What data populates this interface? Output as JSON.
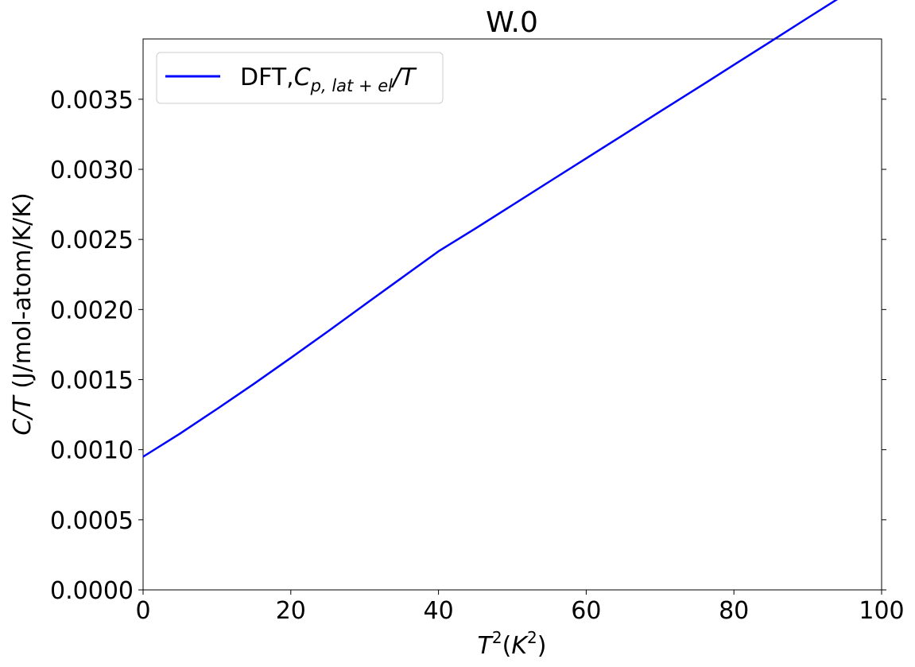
{
  "chart_data": {
    "type": "line",
    "title": "W.0",
    "xlabel": {
      "base": "T",
      "sup": "2",
      "open": "(",
      "inner_base": "K",
      "inner_sup": "2",
      "close": ")"
    },
    "ylabel": {
      "italic": "C/T",
      "rest": " (J/mol-atom/K/K)"
    },
    "xlim": [
      0,
      100
    ],
    "ylim": [
      0,
      0.00393
    ],
    "x_ticks": [
      0,
      20,
      40,
      60,
      80,
      100
    ],
    "x_tick_labels": [
      "0",
      "20",
      "40",
      "60",
      "80",
      "100"
    ],
    "y_ticks": [
      0.0,
      0.0005,
      0.001,
      0.0015,
      0.002,
      0.0025,
      0.003,
      0.0035
    ],
    "y_tick_labels": [
      "0.0000",
      "0.0005",
      "0.0010",
      "0.0015",
      "0.0020",
      "0.0025",
      "0.0030",
      "0.0035"
    ],
    "grid": false,
    "legend_position": "top-left",
    "series": [
      {
        "name": "DFT,C_{p,lat+el}/T",
        "legend": {
          "prefix": "DFT,",
          "base": "C",
          "sub": "p, lat + el",
          "suffix": "/T"
        },
        "color": "#0000ff",
        "x": [
          0,
          5,
          10,
          15,
          20,
          25,
          30,
          35,
          40,
          45,
          50,
          55,
          60,
          65,
          70,
          75,
          80,
          85,
          90,
          94.5
        ],
        "y": [
          0.00095,
          0.001115,
          0.00129,
          0.00147,
          0.001655,
          0.001843,
          0.002035,
          0.002225,
          0.002415,
          0.002578,
          0.002745,
          0.002912,
          0.003078,
          0.003245,
          0.003412,
          0.003578,
          0.003745,
          0.003912,
          0.00408,
          0.00423
        ]
      }
    ]
  }
}
